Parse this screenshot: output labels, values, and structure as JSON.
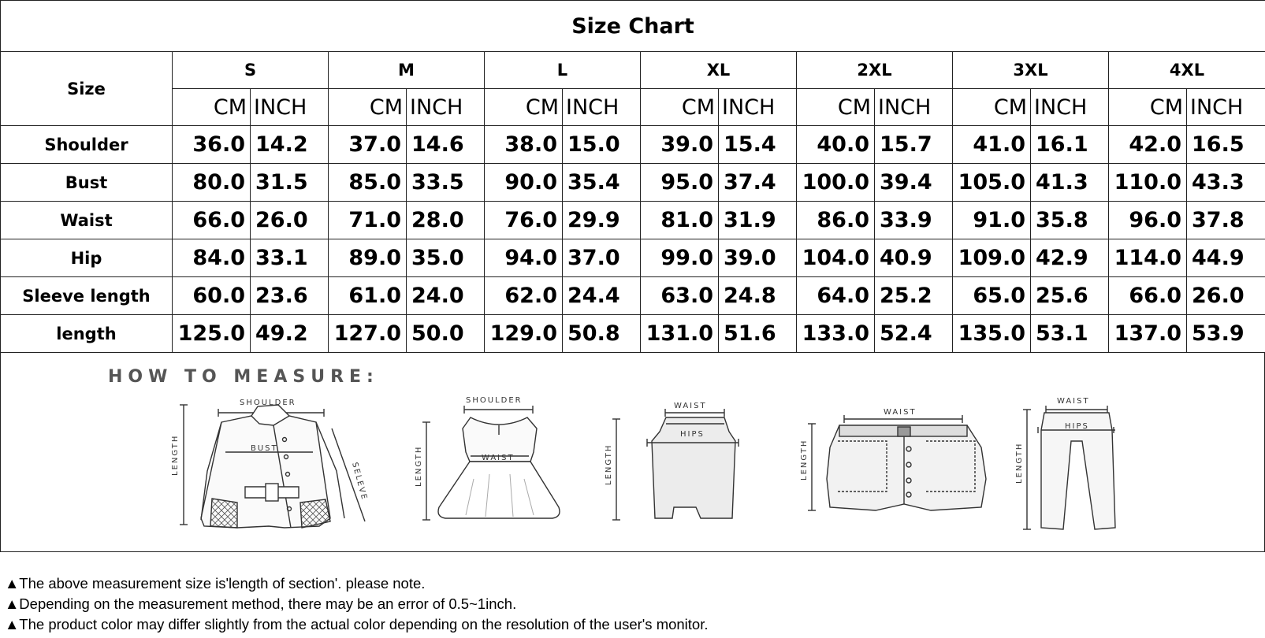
{
  "chart_data": {
    "type": "table",
    "title": "Size Chart",
    "size_header": "Size",
    "sizes": [
      "S",
      "M",
      "L",
      "XL",
      "2XL",
      "3XL",
      "4XL"
    ],
    "units": [
      "CM",
      "INCH"
    ],
    "rows": [
      {
        "label": "Shoulder",
        "values": [
          [
            "36.0",
            "14.2"
          ],
          [
            "37.0",
            "14.6"
          ],
          [
            "38.0",
            "15.0"
          ],
          [
            "39.0",
            "15.4"
          ],
          [
            "40.0",
            "15.7"
          ],
          [
            "41.0",
            "16.1"
          ],
          [
            "42.0",
            "16.5"
          ]
        ]
      },
      {
        "label": "Bust",
        "values": [
          [
            "80.0",
            "31.5"
          ],
          [
            "85.0",
            "33.5"
          ],
          [
            "90.0",
            "35.4"
          ],
          [
            "95.0",
            "37.4"
          ],
          [
            "100.0",
            "39.4"
          ],
          [
            "105.0",
            "41.3"
          ],
          [
            "110.0",
            "43.3"
          ]
        ]
      },
      {
        "label": "Waist",
        "values": [
          [
            "66.0",
            "26.0"
          ],
          [
            "71.0",
            "28.0"
          ],
          [
            "76.0",
            "29.9"
          ],
          [
            "81.0",
            "31.9"
          ],
          [
            "86.0",
            "33.9"
          ],
          [
            "91.0",
            "35.8"
          ],
          [
            "96.0",
            "37.8"
          ]
        ]
      },
      {
        "label": "Hip",
        "values": [
          [
            "84.0",
            "33.1"
          ],
          [
            "89.0",
            "35.0"
          ],
          [
            "94.0",
            "37.0"
          ],
          [
            "99.0",
            "39.0"
          ],
          [
            "104.0",
            "40.9"
          ],
          [
            "109.0",
            "42.9"
          ],
          [
            "114.0",
            "44.9"
          ]
        ]
      },
      {
        "label": "Sleeve length",
        "values": [
          [
            "60.0",
            "23.6"
          ],
          [
            "61.0",
            "24.0"
          ],
          [
            "62.0",
            "24.4"
          ],
          [
            "63.0",
            "24.8"
          ],
          [
            "64.0",
            "25.2"
          ],
          [
            "65.0",
            "25.6"
          ],
          [
            "66.0",
            "26.0"
          ]
        ]
      },
      {
        "label": "length",
        "values": [
          [
            "125.0",
            "49.2"
          ],
          [
            "127.0",
            "50.0"
          ],
          [
            "129.0",
            "50.8"
          ],
          [
            "131.0",
            "51.6"
          ],
          [
            "133.0",
            "52.4"
          ],
          [
            "135.0",
            "53.1"
          ],
          [
            "137.0",
            "53.9"
          ]
        ]
      }
    ]
  },
  "measure": {
    "title": "HOW TO MEASURE:",
    "labels": {
      "shoulder": "SHOULDER",
      "bust": "BUST",
      "sleeve": "SELEVE",
      "length": "LENGTH",
      "waist": "WAIST",
      "hips": "HIPS"
    }
  },
  "notes": [
    "▲The above measurement size is'length of section'. please note.",
    "▲Depending on the measurement method, there may be an error of 0.5~1inch.",
    "▲The product color may differ slightly from the actual color depending on the resolution of the user's monitor."
  ]
}
